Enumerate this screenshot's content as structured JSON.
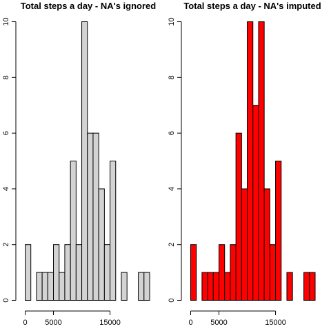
{
  "chart_data": [
    {
      "type": "bar",
      "title": "Total steps a day - NA's ignored",
      "xlabel": "",
      "ylabel": "",
      "fill": "#d3d3d3",
      "bin_width": 1000,
      "x_start": 0,
      "xlim": [
        0,
        22000
      ],
      "ylim": [
        0,
        10
      ],
      "x_ticks": [
        0,
        5000,
        15000
      ],
      "y_ticks": [
        0,
        2,
        4,
        6,
        8,
        10
      ],
      "values": [
        2,
        0,
        1,
        1,
        1,
        2,
        1,
        2,
        5,
        2,
        10,
        6,
        6,
        4,
        2,
        5,
        0,
        1,
        0,
        0,
        1,
        1
      ]
    },
    {
      "type": "bar",
      "title": "Total steps a day - NA's imputed",
      "xlabel": "",
      "ylabel": "",
      "fill": "#ff0000",
      "bin_width": 1000,
      "x_start": 0,
      "xlim": [
        0,
        22000
      ],
      "ylim": [
        0,
        10
      ],
      "x_ticks": [
        0,
        5000,
        15000
      ],
      "y_ticks": [
        0,
        2,
        4,
        6,
        8,
        10
      ],
      "values": [
        2,
        0,
        1,
        1,
        1,
        2,
        1,
        2,
        6,
        4,
        10,
        7,
        10,
        4,
        2,
        5,
        0,
        1,
        0,
        0,
        1,
        1
      ]
    }
  ]
}
